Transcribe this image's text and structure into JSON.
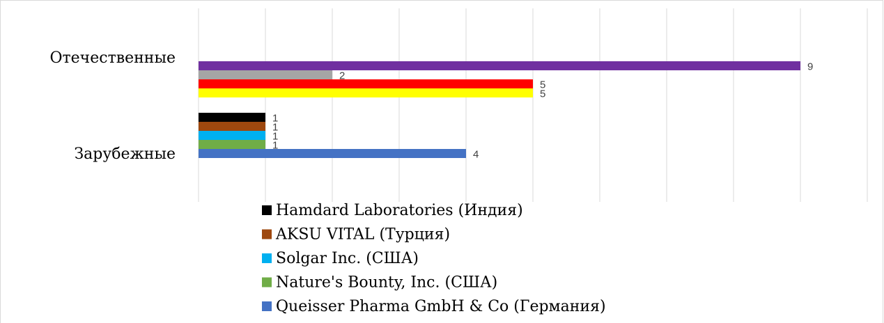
{
  "chart_data": {
    "type": "bar",
    "orientation": "horizontal",
    "categories": [
      "Отечественные",
      "Зарубежные"
    ],
    "series": [
      {
        "name": "Hamdard Laboratories (Индия)",
        "color": "#000000",
        "values": [
          null,
          1
        ]
      },
      {
        "name": "AKSU VITAL (Турция)",
        "color": "#9e480e",
        "values": [
          null,
          1
        ]
      },
      {
        "name": "Solgar Inc. (США)",
        "color": "#00b0f0",
        "values": [
          null,
          1
        ]
      },
      {
        "name": "Nature's Bounty, Inc. (США)",
        "color": "#70ad47",
        "values": [
          null,
          1
        ]
      },
      {
        "name": "Queisser Pharma GmbH & Co (Германия)",
        "color": "#4472c4",
        "values": [
          null,
          4
        ]
      },
      {
        "color": "#7030a0",
        "values": [
          9,
          null
        ]
      },
      {
        "color": "#a5a5a5",
        "values": [
          2,
          null
        ]
      },
      {
        "color": "#ff0000",
        "values": [
          5,
          null
        ]
      },
      {
        "color": "#ffff00",
        "values": [
          5,
          null
        ]
      }
    ],
    "xlim": [
      0,
      10
    ],
    "xticks": [
      0,
      1,
      2,
      3,
      4,
      5,
      6,
      7,
      8,
      9,
      10
    ],
    "grid": true
  }
}
